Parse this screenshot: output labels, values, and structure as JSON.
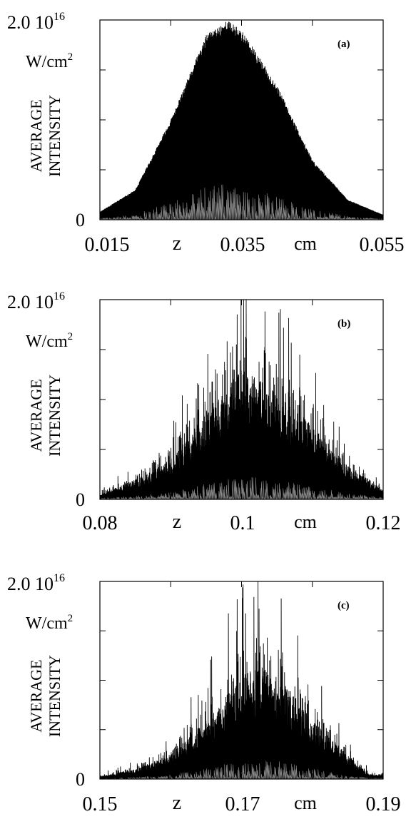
{
  "chart_data": [
    {
      "type": "line",
      "panel_label": "(a)",
      "y_top_label": "2.0 10",
      "y_top_exp": "16",
      "y_unit_base": "W/cm",
      "y_unit_exp": "2",
      "ylabel_line1": "AVERAGE",
      "ylabel_line2": "INTENSITY",
      "y_zero_label": "0",
      "xlabel": "z",
      "x_unit": "cm",
      "x_tick_labels": [
        "0.015",
        "0.035",
        "0.055"
      ],
      "xlim": [
        0.015,
        0.055
      ],
      "ylim": [
        0,
        2e+16
      ],
      "series": [
        {
          "kind": "envelope",
          "x": [
            0.015,
            0.02,
            0.025,
            0.03,
            0.033,
            0.035,
            0.04,
            0.045,
            0.05,
            0.055
          ],
          "y": [
            800000000000000.0,
            3000000000000000.0,
            1e+16,
            1.85e+16,
            2e+16,
            1.9e+16,
            1.35e+16,
            6000000000000000.0,
            2000000000000000.0,
            500000000000000.0
          ]
        }
      ]
    },
    {
      "type": "line",
      "panel_label": "(b)",
      "y_top_label": "2.0 10",
      "y_top_exp": "16",
      "y_unit_base": "W/cm",
      "y_unit_exp": "2",
      "ylabel_line1": "AVERAGE",
      "ylabel_line2": "INTENSITY",
      "y_zero_label": "0",
      "xlabel": "z",
      "x_unit": "cm",
      "x_tick_labels": [
        "0.08",
        "0.1",
        "0.12"
      ],
      "xlim": [
        0.08,
        0.12
      ],
      "ylim": [
        0,
        2e+16
      ],
      "series": [
        {
          "kind": "envelope",
          "x": [
            0.08,
            0.085,
            0.09,
            0.095,
            0.1,
            0.103,
            0.106,
            0.11,
            0.115,
            0.12
          ],
          "y": [
            500000000000000.0,
            2000000000000000.0,
            4000000000000000.0,
            9000000000000000.0,
            1.3e+16,
            1.2e+16,
            1e+16,
            7500000000000000.0,
            3500000000000000.0,
            1000000000000000.0
          ]
        }
      ]
    },
    {
      "type": "line",
      "panel_label": "(c)",
      "y_top_label": "2.0 10",
      "y_top_exp": "16",
      "y_unit_base": "W/cm",
      "y_unit_exp": "2",
      "ylabel_line1": "AVERAGE",
      "ylabel_line2": "INTENSITY",
      "y_zero_label": "0",
      "xlabel": "z",
      "x_unit": "cm",
      "x_tick_labels": [
        "0.15",
        "0.17",
        "0.19"
      ],
      "xlim": [
        0.15,
        0.19
      ],
      "ylim": [
        0,
        2e+16
      ],
      "series": [
        {
          "kind": "envelope",
          "x": [
            0.15,
            0.155,
            0.16,
            0.165,
            0.17,
            0.173,
            0.176,
            0.18,
            0.185,
            0.188
          ],
          "y": [
            300000000000000.0,
            1000000000000000.0,
            2500000000000000.0,
            6000000000000000.0,
            1.05e+16,
            1.15e+16,
            1e+16,
            6000000000000000.0,
            2500000000000000.0,
            500000000000000.0
          ]
        }
      ]
    }
  ]
}
